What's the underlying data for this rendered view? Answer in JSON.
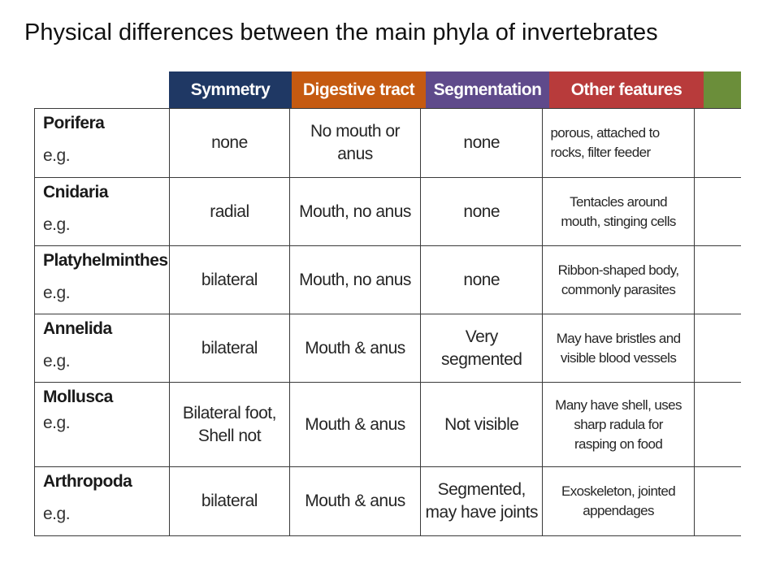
{
  "title": "Physical differences between the main phyla of invertebrates",
  "columns": [
    {
      "label": "Symmetry",
      "color": "#1f3864"
    },
    {
      "label": "Digestive tract",
      "color": "#c55a11"
    },
    {
      "label": "Segmentation",
      "color": "#5f4a8b"
    },
    {
      "label": "Other features",
      "color": "#b83b3b"
    },
    {
      "label": "",
      "color": "#6b8e3a"
    }
  ],
  "rows": [
    {
      "phylum": "Porifera",
      "example": "e.g.",
      "symmetry": "none",
      "digestive": [
        "No mouth or",
        "anus"
      ],
      "segmentation": [
        "none"
      ],
      "features": [
        "porous, attached to",
        "rocks, filter feeder"
      ]
    },
    {
      "phylum": "Cnidaria",
      "example": "e.g.",
      "symmetry": "radial",
      "digestive": [
        "Mouth, no anus"
      ],
      "segmentation": [
        "none"
      ],
      "features": [
        "Tentacles around",
        "mouth, stinging cells"
      ]
    },
    {
      "phylum": "Platyhelminthes",
      "example": "e.g.",
      "symmetry": "bilateral",
      "digestive": [
        "Mouth, no anus"
      ],
      "segmentation": [
        "none"
      ],
      "features": [
        "Ribbon-shaped body,",
        "commonly parasites"
      ]
    },
    {
      "phylum": "Annelida",
      "example": "e.g.",
      "symmetry": "bilateral",
      "digestive": [
        "Mouth & anus"
      ],
      "segmentation": [
        "Very",
        "segmented"
      ],
      "features": [
        "May have bristles and",
        "visible blood vessels"
      ]
    },
    {
      "phylum": "Mollusca",
      "example": "e.g.",
      "symmetry": [
        "Bilateral foot,",
        "Shell not"
      ],
      "digestive": [
        "Mouth & anus"
      ],
      "segmentation": [
        "Not visible"
      ],
      "features": [
        "Many have shell, uses",
        "sharp radula for",
        "rasping on food"
      ]
    },
    {
      "phylum": "Arthropoda",
      "example": "e.g.",
      "symmetry": "bilateral",
      "digestive": [
        "Mouth & anus"
      ],
      "segmentation": [
        "Segmented,",
        "may have joints"
      ],
      "features": [
        "Exoskeleton, jointed",
        "appendages"
      ]
    }
  ]
}
